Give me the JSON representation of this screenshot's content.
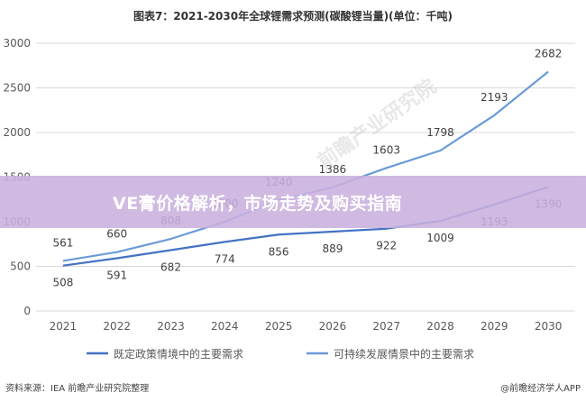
{
  "chart_data": {
    "type": "line",
    "title": "图表7：2021-2030年全球锂需求预测(碳酸锂当量)(单位：千吨)",
    "xlabel": "",
    "ylabel": "",
    "categories": [
      "2021",
      "2022",
      "2023",
      "2024",
      "2025",
      "2026",
      "2027",
      "2028",
      "2029",
      "2030"
    ],
    "ylim": [
      0,
      3000
    ],
    "yticks": [
      0,
      500,
      1000,
      1500,
      2000,
      2500,
      3000
    ],
    "grid": true,
    "legend_position": "bottom",
    "series": [
      {
        "name": "既定政策情境中的主要需求",
        "color": "#4472c4",
        "values": [
          508,
          591,
          682,
          774,
          856,
          889,
          922,
          1009,
          1193,
          1390
        ]
      },
      {
        "name": "可持续发展情景中的主要需求",
        "color": "#6a9bd8",
        "values": [
          561,
          660,
          808,
          1000,
          1240,
          1386,
          1603,
          1798,
          2193,
          2682
        ]
      }
    ]
  },
  "source": "资料来源：IEA 前瞻产业研究院整理",
  "watermark_text": "前瞻产业研究院",
  "app_mark": "@前瞻经济学人APP",
  "banner": {
    "text": "VE膏价格解析，市场走势及购买指南",
    "color": "#c9b0de"
  }
}
